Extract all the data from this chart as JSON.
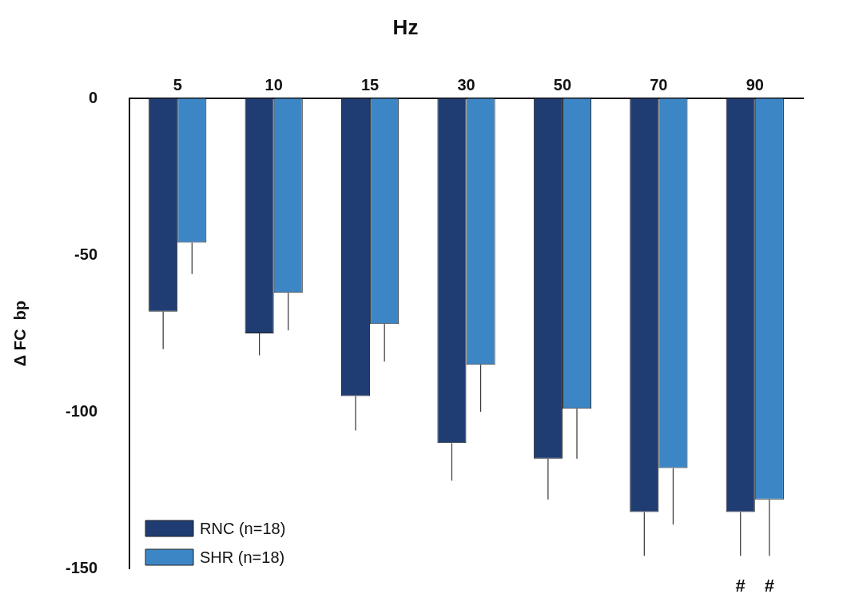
{
  "chart_data": {
    "type": "bar",
    "title": "Hz",
    "ylabel": "Δ FC  bp",
    "categories": [
      "5",
      "10",
      "15",
      "30",
      "50",
      "70",
      "90"
    ],
    "series": [
      {
        "name": "RNC (n=18)",
        "color": "#1f3d73",
        "values": [
          -68,
          -75,
          -95,
          -110,
          -115,
          -132,
          -132
        ],
        "errors": [
          [
            -80,
            -68
          ],
          [
            -82,
            -75
          ],
          [
            -106,
            -95
          ],
          [
            -122,
            -110
          ],
          [
            -128,
            -115
          ],
          [
            -146,
            -132
          ],
          [
            -146,
            -132
          ]
        ]
      },
      {
        "name": "SHR (n=18)",
        "color": "#3d86c6",
        "values": [
          -46,
          -62,
          -72,
          -85,
          -99,
          -118,
          -128
        ],
        "errors": [
          [
            -56,
            -46
          ],
          [
            -74,
            -62
          ],
          [
            -84,
            -72
          ],
          [
            -100,
            -85
          ],
          [
            -115,
            -99
          ],
          [
            -136,
            -118
          ],
          [
            -146,
            -128
          ]
        ]
      }
    ],
    "ylim": [
      -150,
      0
    ],
    "yticks": [
      0,
      -50,
      -100,
      -150
    ],
    "grid": false,
    "legend": "bottom left",
    "annotations": [
      "#",
      "#"
    ]
  }
}
